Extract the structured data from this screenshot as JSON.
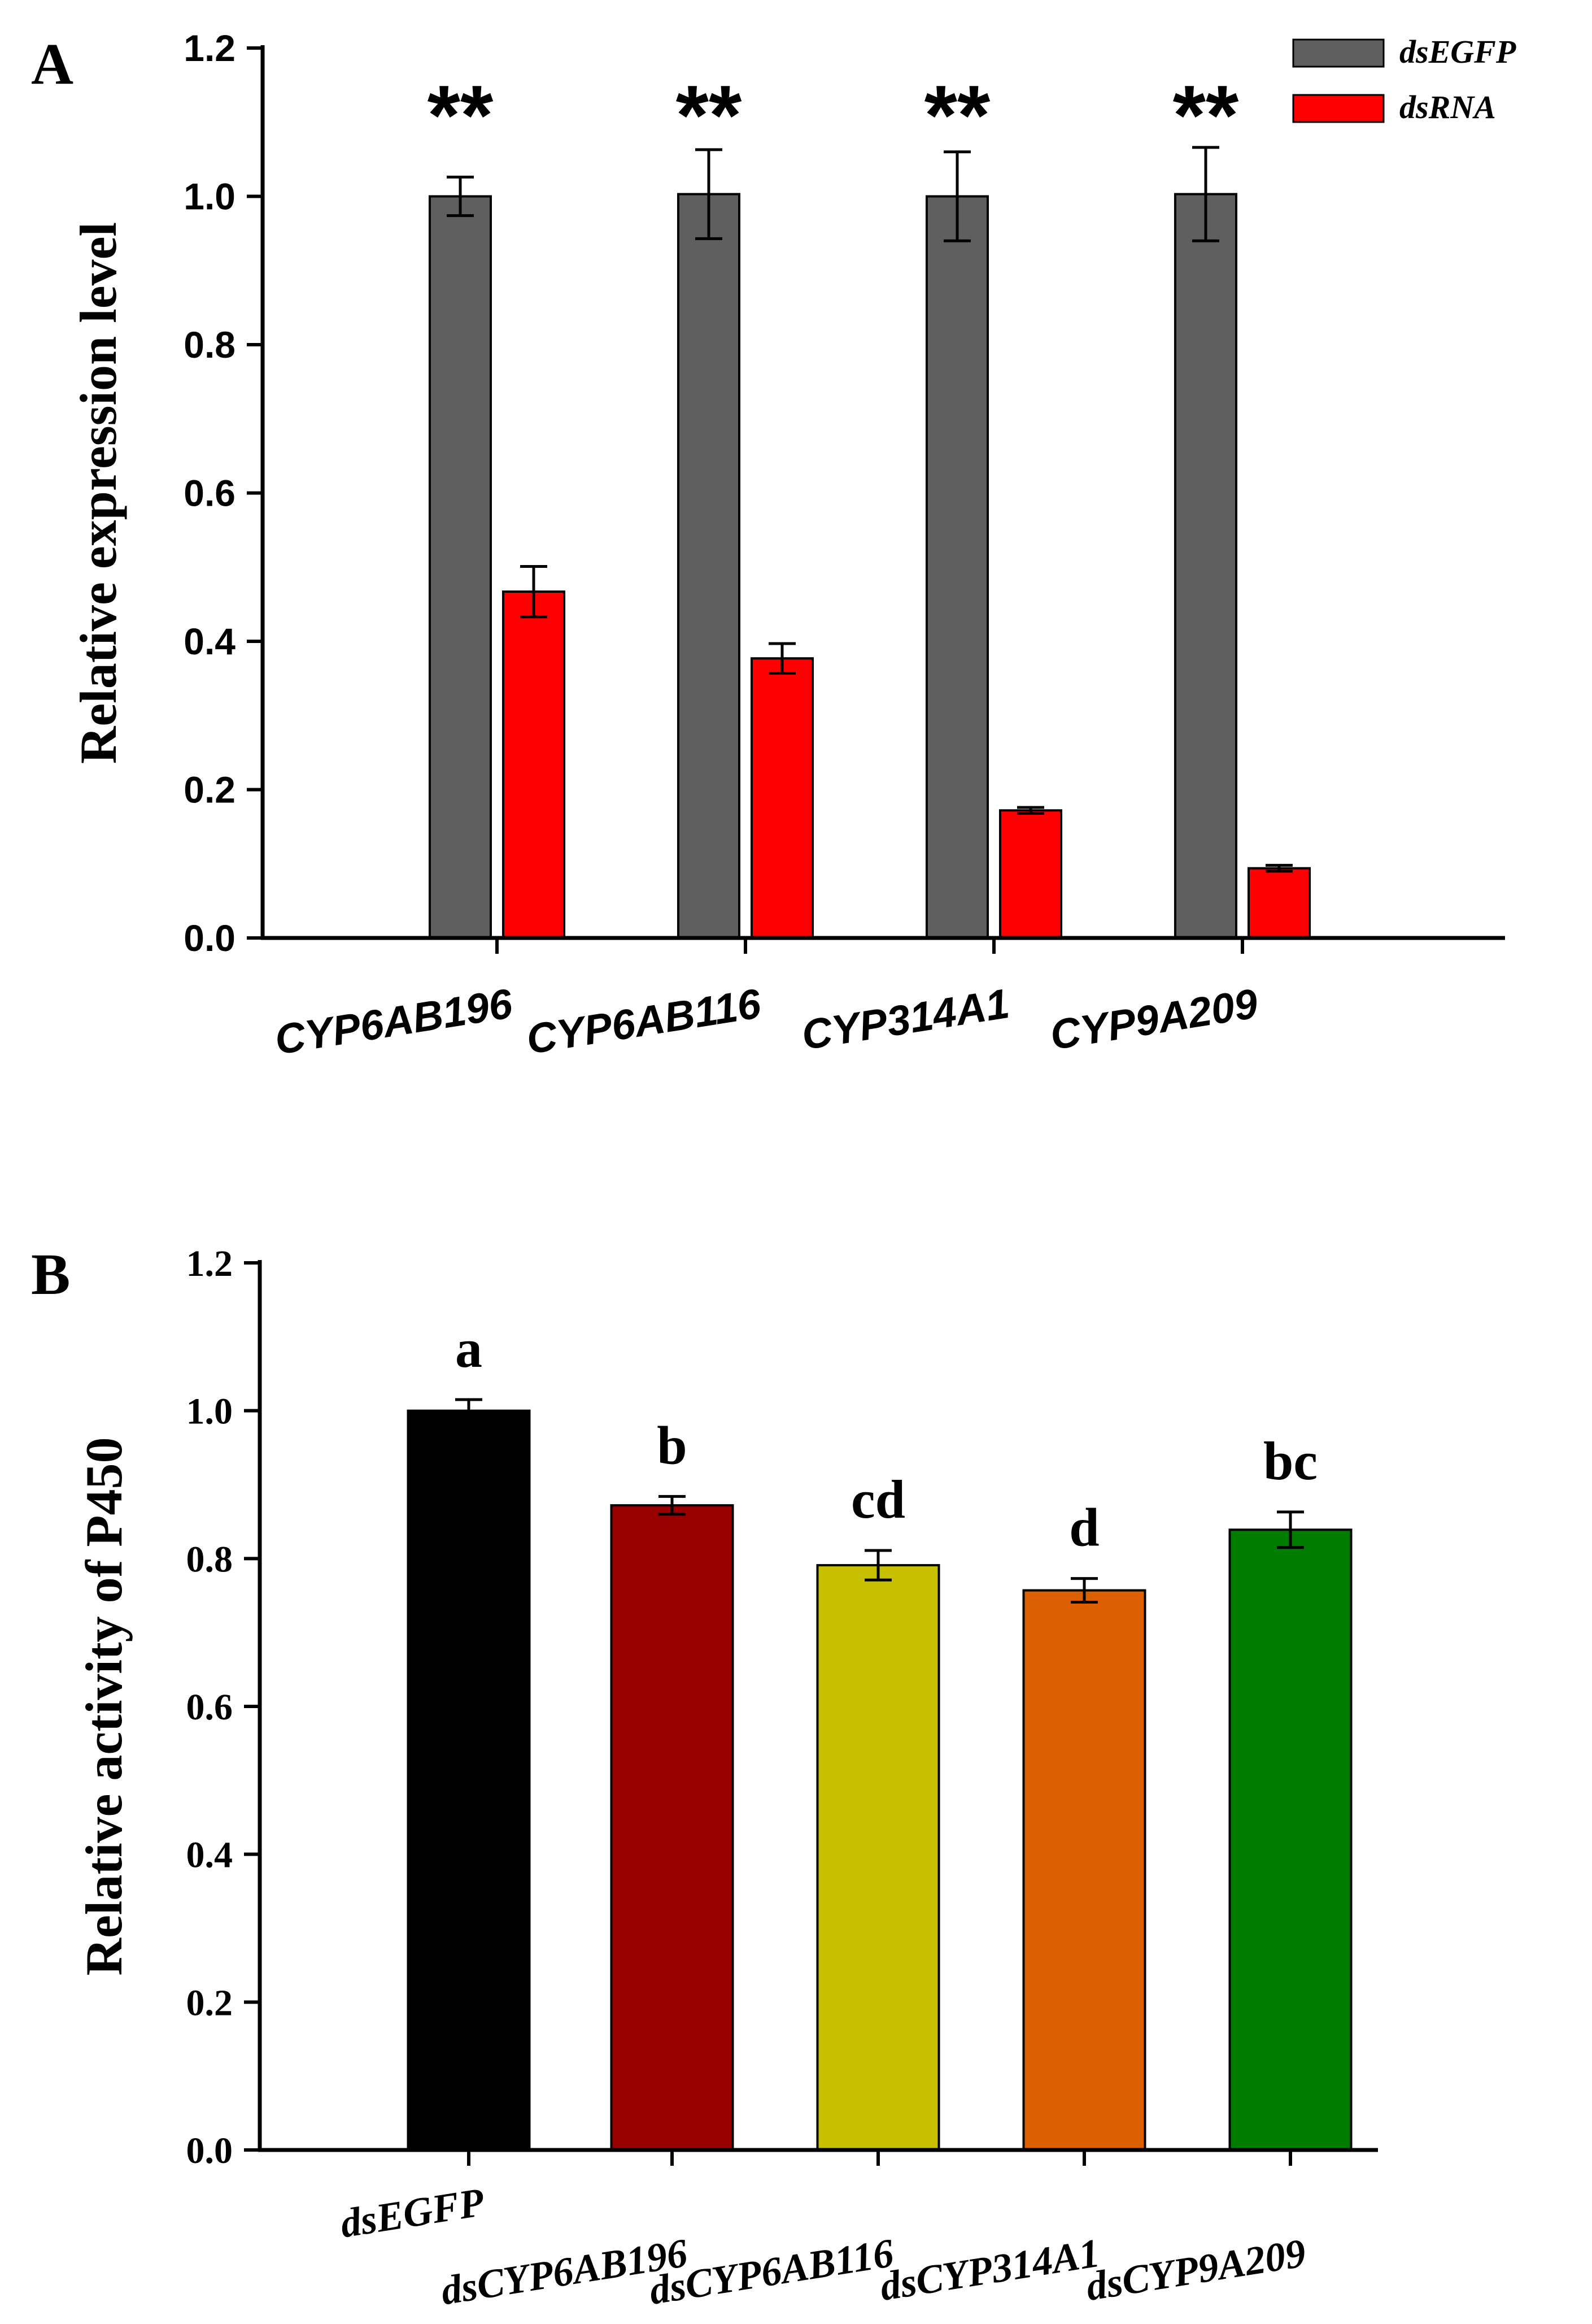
{
  "chart_data": [
    {
      "panel": "A",
      "type": "bar",
      "title": "",
      "xlabel": "",
      "ylabel": "Relative expression level",
      "ylim": [
        0,
        1.2
      ],
      "yticks": [
        "0.0",
        "0.2",
        "0.4",
        "0.6",
        "0.8",
        "1.0",
        "1.2"
      ],
      "categories": [
        "CYP6AB196",
        "CYP6AB116",
        "CYP314A1",
        "CYP9A209"
      ],
      "series": [
        {
          "name": "dsEGFP",
          "color": "#5f5f5f",
          "values": [
            1.0,
            1.003,
            1.0,
            1.003
          ],
          "errors": [
            0.026,
            0.06,
            0.06,
            0.063
          ]
        },
        {
          "name": "dsRNA",
          "color": "#ff0000",
          "values": [
            0.467,
            0.377,
            0.172,
            0.094
          ],
          "errors": [
            0.034,
            0.02,
            0.004,
            0.004
          ]
        }
      ],
      "significance": [
        "**",
        "**",
        "**",
        "**"
      ],
      "legend_position": "top-right"
    },
    {
      "panel": "B",
      "type": "bar",
      "title": "",
      "xlabel": "",
      "ylabel": "Relative activity of P450",
      "ylim": [
        0,
        1.2
      ],
      "yticks": [
        "0.0",
        "0.2",
        "0.4",
        "0.6",
        "0.8",
        "1.0",
        "1.2"
      ],
      "categories": [
        "dsEGFP",
        "dsCYP6AB196",
        "dsCYP6AB116",
        "dsCYP314A1",
        "dsCYP9A209"
      ],
      "values": [
        1.0,
        0.872,
        0.791,
        0.757,
        0.839
      ],
      "errors": [
        0.015,
        0.012,
        0.02,
        0.016,
        0.024
      ],
      "colors": [
        "#000000",
        "#980000",
        "#c7c000",
        "#dd6000",
        "#007c00"
      ],
      "letters": [
        "a",
        "b",
        "cd",
        "d",
        "bc"
      ]
    }
  ]
}
